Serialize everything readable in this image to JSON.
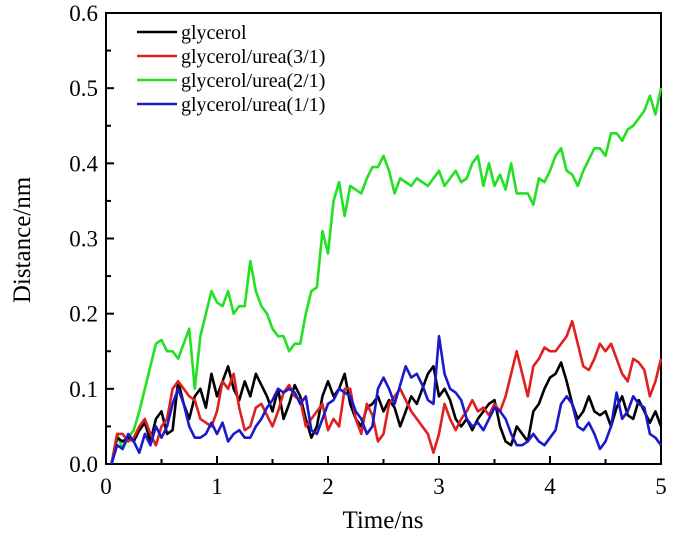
{
  "chart_data": {
    "type": "line",
    "title": "",
    "xlabel": "Time/ns",
    "ylabel": "Distance/nm",
    "xlim": [
      0,
      5
    ],
    "ylim": [
      0,
      0.6
    ],
    "xticks": [
      "0",
      "1",
      "2",
      "3",
      "4",
      "5"
    ],
    "yticks": [
      "0.0",
      "0.1",
      "0.2",
      "0.3",
      "0.4",
      "0.5",
      "0.6"
    ],
    "grid": false,
    "legend_position": "top-left",
    "x": [
      0.05,
      0.1,
      0.15,
      0.2,
      0.25,
      0.3,
      0.35,
      0.4,
      0.45,
      0.5,
      0.55,
      0.6,
      0.65,
      0.7,
      0.75,
      0.8,
      0.85,
      0.9,
      0.95,
      1.0,
      1.05,
      1.1,
      1.15,
      1.2,
      1.25,
      1.3,
      1.35,
      1.4,
      1.45,
      1.5,
      1.55,
      1.6,
      1.65,
      1.7,
      1.75,
      1.8,
      1.85,
      1.9,
      1.95,
      2.0,
      2.05,
      2.1,
      2.15,
      2.2,
      2.25,
      2.3,
      2.35,
      2.4,
      2.45,
      2.5,
      2.55,
      2.6,
      2.65,
      2.7,
      2.75,
      2.8,
      2.85,
      2.9,
      2.95,
      3.0,
      3.05,
      3.1,
      3.15,
      3.2,
      3.25,
      3.3,
      3.35,
      3.4,
      3.45,
      3.5,
      3.55,
      3.6,
      3.65,
      3.7,
      3.75,
      3.8,
      3.85,
      3.9,
      3.95,
      4.0,
      4.05,
      4.1,
      4.15,
      4.2,
      4.25,
      4.3,
      4.35,
      4.4,
      4.45,
      4.5,
      4.55,
      4.6,
      4.65,
      4.7,
      4.75,
      4.8,
      4.85,
      4.9,
      4.95,
      5.0
    ],
    "series": [
      {
        "name": "glycerol",
        "color": "#000000",
        "values": [
          0.0,
          0.035,
          0.03,
          0.035,
          0.03,
          0.045,
          0.055,
          0.03,
          0.06,
          0.07,
          0.04,
          0.045,
          0.11,
          0.08,
          0.06,
          0.09,
          0.1,
          0.075,
          0.12,
          0.09,
          0.11,
          0.13,
          0.1,
          0.085,
          0.11,
          0.09,
          0.12,
          0.105,
          0.09,
          0.07,
          0.1,
          0.06,
          0.08,
          0.105,
          0.09,
          0.06,
          0.035,
          0.05,
          0.09,
          0.11,
          0.09,
          0.1,
          0.12,
          0.08,
          0.06,
          0.05,
          0.075,
          0.08,
          0.09,
          0.07,
          0.085,
          0.075,
          0.05,
          0.07,
          0.09,
          0.08,
          0.1,
          0.12,
          0.13,
          0.09,
          0.1,
          0.085,
          0.06,
          0.05,
          0.06,
          0.045,
          0.06,
          0.07,
          0.08,
          0.085,
          0.05,
          0.03,
          0.025,
          0.05,
          0.04,
          0.03,
          0.07,
          0.08,
          0.1,
          0.115,
          0.12,
          0.135,
          0.11,
          0.08,
          0.06,
          0.07,
          0.09,
          0.07,
          0.065,
          0.07,
          0.05,
          0.075,
          0.09,
          0.065,
          0.06,
          0.085,
          0.07,
          0.055,
          0.07,
          0.05
        ]
      },
      {
        "name": "glycerol/urea(3/1)",
        "color": "#e02020",
        "values": [
          0.0,
          0.04,
          0.04,
          0.03,
          0.035,
          0.05,
          0.06,
          0.04,
          0.025,
          0.05,
          0.06,
          0.1,
          0.11,
          0.1,
          0.09,
          0.085,
          0.06,
          0.055,
          0.05,
          0.07,
          0.11,
          0.1,
          0.12,
          0.075,
          0.045,
          0.05,
          0.075,
          0.08,
          0.065,
          0.05,
          0.07,
          0.095,
          0.105,
          0.09,
          0.085,
          0.05,
          0.06,
          0.07,
          0.08,
          0.045,
          0.06,
          0.05,
          0.1,
          0.1,
          0.06,
          0.04,
          0.08,
          0.065,
          0.03,
          0.04,
          0.08,
          0.09,
          0.1,
          0.085,
          0.07,
          0.06,
          0.05,
          0.04,
          0.015,
          0.04,
          0.08,
          0.06,
          0.045,
          0.06,
          0.07,
          0.085,
          0.07,
          0.075,
          0.065,
          0.08,
          0.07,
          0.09,
          0.12,
          0.15,
          0.12,
          0.09,
          0.13,
          0.14,
          0.155,
          0.15,
          0.15,
          0.16,
          0.17,
          0.19,
          0.16,
          0.13,
          0.125,
          0.14,
          0.16,
          0.15,
          0.16,
          0.14,
          0.12,
          0.11,
          0.14,
          0.135,
          0.125,
          0.09,
          0.11,
          0.14
        ]
      },
      {
        "name": "glycerol/urea(2/1)",
        "color": "#22e022",
        "values": [
          0.0,
          0.04,
          0.02,
          0.035,
          0.045,
          0.07,
          0.1,
          0.13,
          0.16,
          0.165,
          0.15,
          0.15,
          0.14,
          0.16,
          0.18,
          0.1,
          0.17,
          0.2,
          0.23,
          0.215,
          0.21,
          0.23,
          0.2,
          0.21,
          0.21,
          0.27,
          0.23,
          0.21,
          0.2,
          0.18,
          0.17,
          0.17,
          0.15,
          0.16,
          0.16,
          0.2,
          0.23,
          0.235,
          0.31,
          0.28,
          0.35,
          0.375,
          0.33,
          0.37,
          0.365,
          0.36,
          0.38,
          0.395,
          0.395,
          0.41,
          0.39,
          0.36,
          0.38,
          0.375,
          0.37,
          0.38,
          0.375,
          0.37,
          0.38,
          0.39,
          0.37,
          0.38,
          0.39,
          0.375,
          0.38,
          0.4,
          0.41,
          0.37,
          0.4,
          0.37,
          0.385,
          0.365,
          0.4,
          0.36,
          0.36,
          0.36,
          0.345,
          0.38,
          0.375,
          0.39,
          0.41,
          0.42,
          0.39,
          0.385,
          0.37,
          0.39,
          0.405,
          0.42,
          0.42,
          0.41,
          0.44,
          0.44,
          0.43,
          0.445,
          0.45,
          0.46,
          0.47,
          0.49,
          0.465,
          0.5
        ]
      },
      {
        "name": "glycerol/urea(1/1)",
        "color": "#1a1acc",
        "values": [
          0.0,
          0.025,
          0.02,
          0.04,
          0.03,
          0.015,
          0.04,
          0.025,
          0.05,
          0.035,
          0.05,
          0.08,
          0.1,
          0.08,
          0.05,
          0.035,
          0.035,
          0.04,
          0.055,
          0.04,
          0.055,
          0.03,
          0.04,
          0.045,
          0.035,
          0.035,
          0.05,
          0.06,
          0.075,
          0.085,
          0.1,
          0.095,
          0.1,
          0.095,
          0.08,
          0.09,
          0.045,
          0.04,
          0.06,
          0.08,
          0.085,
          0.1,
          0.095,
          0.09,
          0.07,
          0.06,
          0.04,
          0.05,
          0.1,
          0.115,
          0.1,
          0.08,
          0.105,
          0.13,
          0.115,
          0.12,
          0.105,
          0.085,
          0.08,
          0.17,
          0.12,
          0.1,
          0.095,
          0.085,
          0.06,
          0.05,
          0.055,
          0.045,
          0.06,
          0.075,
          0.07,
          0.06,
          0.04,
          0.025,
          0.025,
          0.03,
          0.04,
          0.03,
          0.025,
          0.035,
          0.045,
          0.08,
          0.09,
          0.08,
          0.05,
          0.045,
          0.055,
          0.04,
          0.02,
          0.03,
          0.05,
          0.095,
          0.06,
          0.07,
          0.09,
          0.08,
          0.075,
          0.04,
          0.035,
          0.025
        ]
      }
    ]
  }
}
